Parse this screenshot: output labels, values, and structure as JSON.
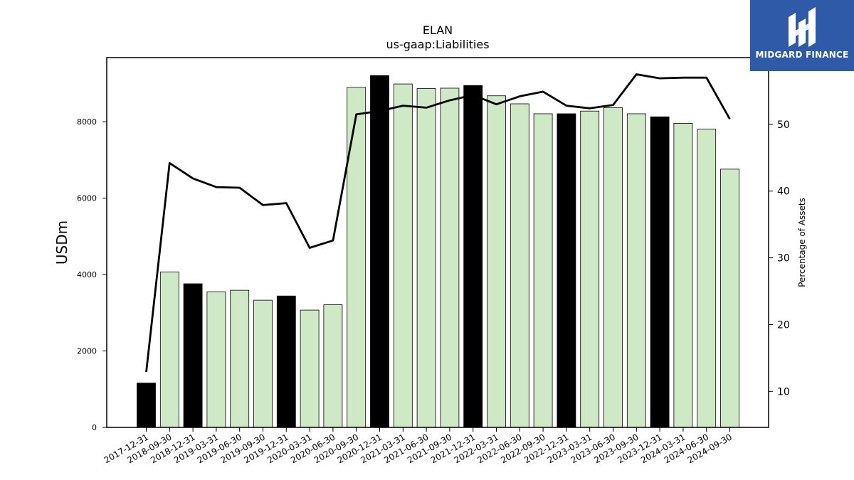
{
  "chart_data": {
    "type": "bar",
    "title": "ELAN",
    "subtitle": "us-gaap:Liabilities",
    "ylabel": "USDm",
    "y2label": "Percentage of Assets",
    "ylim": [
      0,
      9680
    ],
    "y2lim": [
      4.6,
      60.0
    ],
    "yticks": [
      0,
      2000,
      4000,
      6000,
      8000
    ],
    "y2ticks": [
      10,
      20,
      30,
      40,
      50
    ],
    "grid": false,
    "categories": [
      "2017-12-31",
      "2018-09-30",
      "2018-12-31",
      "2019-03-31",
      "2019-06-30",
      "2019-09-30",
      "2019-12-31",
      "2020-03-31",
      "2020-06-30",
      "2020-09-30",
      "2020-12-31",
      "2021-03-31",
      "2021-06-30",
      "2021-09-30",
      "2021-12-31",
      "2022-03-31",
      "2022-06-30",
      "2022-09-30",
      "2022-12-31",
      "2023-03-31",
      "2023-06-30",
      "2023-09-30",
      "2023-12-31",
      "2024-03-31",
      "2024-06-30",
      "2024-09-30"
    ],
    "series": [
      {
        "kind": "bar",
        "values": [
          1160,
          4070,
          3760,
          3550,
          3590,
          3330,
          3440,
          3070,
          3210,
          8900,
          9210,
          8990,
          8870,
          8880,
          8950,
          8680,
          8470,
          8210,
          8210,
          8280,
          8370,
          8210,
          8130,
          7960,
          7810,
          6760
        ],
        "year_end_color": "#000000",
        "quarter_color": "#cfe9c6"
      },
      {
        "kind": "line",
        "axis": "right",
        "values": [
          12.9,
          44.2,
          41.9,
          40.6,
          40.5,
          37.9,
          38.2,
          31.5,
          32.6,
          51.5,
          52.0,
          52.8,
          52.5,
          53.6,
          54.4,
          53.0,
          54.2,
          54.9,
          52.8,
          52.4,
          52.9,
          57.5,
          56.9,
          57.0,
          57.0,
          50.8
        ],
        "color": "#000000"
      }
    ]
  },
  "branding": {
    "name": "MIDGARD FINANCE",
    "logo_icon": "midgard-m-logo-icon",
    "background": "#2e5aa8"
  }
}
